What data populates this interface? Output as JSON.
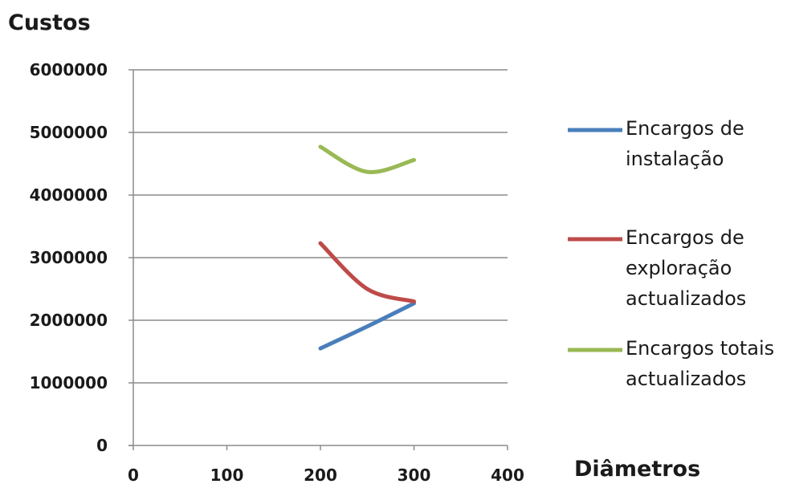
{
  "chart_data": {
    "type": "line",
    "title": "",
    "ylabel": "Custos",
    "xlabel": "Diâmetros",
    "xlim": [
      0,
      400
    ],
    "ylim": [
      0,
      6000000
    ],
    "x_ticks": [
      "0",
      "100",
      "200",
      "300",
      "400"
    ],
    "y_ticks": [
      "0",
      "1000000",
      "2000000",
      "3000000",
      "4000000",
      "5000000",
      "6000000"
    ],
    "grid": "horizontal",
    "legend_position": "right",
    "series": [
      {
        "name": "Encargos de instalação",
        "color": "#4a7ebb",
        "x": [
          200,
          250,
          300
        ],
        "y": [
          1550000,
          1900000,
          2270000
        ]
      },
      {
        "name": "Encargos de exploração actualizados",
        "color": "#be4b48",
        "x": [
          200,
          250,
          300
        ],
        "y": [
          3230000,
          2500000,
          2300000
        ]
      },
      {
        "name": "Encargos totais actualizados",
        "color": "#98b954",
        "x": [
          200,
          250,
          300
        ],
        "y": [
          4770000,
          4370000,
          4560000
        ]
      }
    ]
  }
}
